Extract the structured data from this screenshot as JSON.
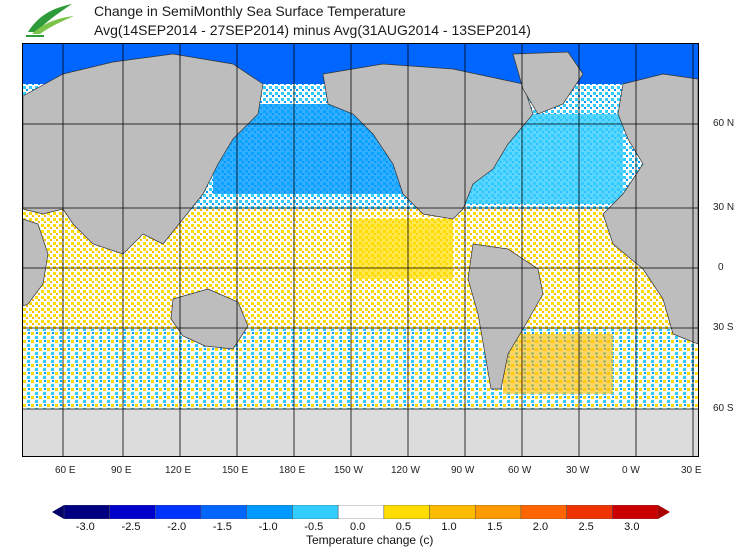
{
  "title": {
    "line1": "Change in SemiMonthly Sea Surface Temperature",
    "line2": "Avg(14SEP2014 - 27SEP2014) minus Avg(31AUG2014 - 13SEP2014)"
  },
  "map": {
    "lat_labels": [
      "60 N",
      "30 N",
      "0",
      "30 S",
      "60 S"
    ],
    "lon_labels": [
      "60 E",
      "90 E",
      "120 E",
      "150 E",
      "180 E",
      "150 W",
      "120 W",
      "90 W",
      "60 W",
      "30 W",
      "0 W",
      "30 E"
    ]
  },
  "colorbar": {
    "title": "Temperature change  (c)",
    "tick_labels": [
      "-3.0",
      "-2.5",
      "-2.0",
      "-1.5",
      "-1.0",
      "-0.5",
      "0.0",
      "0.5",
      "1.0",
      "1.5",
      "2.0",
      "2.5",
      "3.0"
    ],
    "colors": [
      "#000080",
      "#0000cc",
      "#0033ff",
      "#0066ff",
      "#0099ff",
      "#33ccff",
      "#ffffff",
      "#ffdd00",
      "#ffbb00",
      "#ff9900",
      "#ff6600",
      "#ee3300",
      "#cc0000"
    ]
  },
  "colors": {
    "land": "#bdbdbd",
    "ice": "#dcdcdc",
    "grid": "#000000"
  }
}
